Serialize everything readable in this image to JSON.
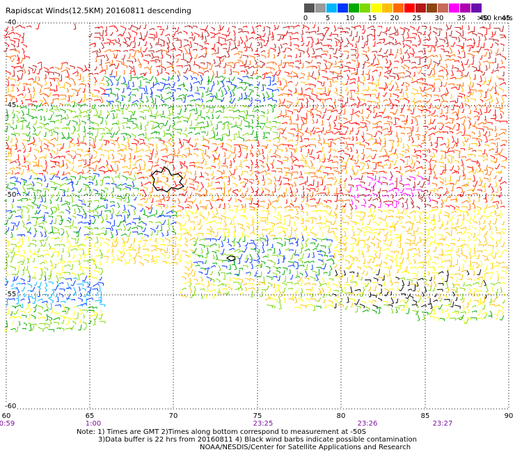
{
  "title": "Rapidscat Winds(12.5KM) 20160811 descending",
  "legend": {
    "labels": [
      "0",
      "5",
      "10",
      "15",
      "20",
      "25",
      "30",
      "35",
      "40",
      "45"
    ],
    "unit": ">50 knots",
    "colors": [
      "#555555",
      "#9a9a9a",
      "#00b5ff",
      "#0033ff",
      "#00aa00",
      "#7dd800",
      "#ffff00",
      "#ffc000",
      "#ff6a00",
      "#ff0000",
      "#b31919",
      "#8b4513",
      "#c76a5a",
      "#ff00ff",
      "#b000b0",
      "#6a0dad"
    ]
  },
  "map": {
    "lat_labels": [
      "-40",
      "-45",
      "-50",
      "-55",
      "-60"
    ],
    "lon_labels": [
      "60",
      "65",
      "70",
      "75",
      "80",
      "85",
      "90"
    ],
    "time_labels": [
      "0:59",
      "1:00",
      "23:25",
      "23:26",
      "23:27"
    ]
  },
  "notes": {
    "line1": "Note: 1) Times are GMT 2)Times along bottom correspond to measurement at -50S",
    "line2": "3)Data buffer is 22 hrs from 20160811 4) Black wind barbs indicate possible contamination",
    "line3": "NOAA/NESDIS/Center for Satellite Applications and Research"
  }
}
